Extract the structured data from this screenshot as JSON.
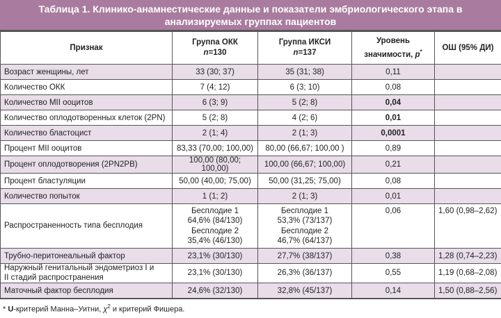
{
  "title": {
    "line1": "Таблица 1. Клинико-анамнестические данные и показатели эмбриологического этапа в",
    "line2": "анализируемых группах пациентов"
  },
  "columns": {
    "feature": "Признак",
    "okk": "Группа ОКК",
    "okk_n_label": "n",
    "okk_n": "=130",
    "icsi": "Группа ИКСИ",
    "icsi_n_label": "n",
    "icsi_n": "=137",
    "p_line1": "Уровень",
    "p_line2": "значимости, ",
    "p_sym": "p",
    "p_star": "*",
    "or": "ОШ (95% ДИ)"
  },
  "rows": [
    {
      "feature": "Возраст женщины, лет",
      "okk": "33 (30; 37)",
      "icsi": "35 (31; 38)",
      "p": "0,11",
      "or": ""
    },
    {
      "feature": "Количество ОКК",
      "okk": "7 (4; 12)",
      "icsi": "6 (3; 10)",
      "p": "0,08",
      "or": ""
    },
    {
      "feature": "Количество MII ооцитов",
      "okk": "6 (3; 9)",
      "icsi": "5 (2; 8)",
      "p": "0,04",
      "or": ""
    },
    {
      "feature": "Количество оплодотворенных клеток (2PN)",
      "okk": "5 (2; 8)",
      "icsi": "4 (2; 6)",
      "p": "0,01",
      "or": ""
    },
    {
      "feature": "Количество бластоцист",
      "okk": "2 (1; 4)",
      "icsi": "2 (1; 3)",
      "p": "0,0001",
      "or": ""
    },
    {
      "feature": "Процент MII ооцитов",
      "okk": "83,33 (70,00; 100,00)",
      "icsi": "80,00  (66,67; 100,00 )",
      "p": "0,89",
      "or": ""
    },
    {
      "feature": "Процент оплодотворения (2PN2PB)",
      "okk": "100,00 (80,00; 100,00)",
      "icsi": "100,00 (66,67; 100,00)",
      "p": "0,21",
      "or": ""
    },
    {
      "feature": "Процент бластуляции",
      "okk": "50,00 (40,00; 75,00)",
      "icsi": "50,00 (31,25; 75,00)",
      "p": "0,08",
      "or": ""
    },
    {
      "feature": "Количество попыток",
      "okk": "1 (1; 2)",
      "icsi": "2 (1; 3)",
      "p": "0,01",
      "or": ""
    }
  ],
  "distribution": {
    "feature": "Распространенность типа бесплодия",
    "okk": [
      "Бесплодие 1",
      "64,6% (84/130)",
      "Бесплодие 2",
      "35,4% (46/130)"
    ],
    "icsi": [
      "Бесплодие 1",
      "53,3% (73/137)",
      "Бесплодие 2",
      "46,7% (64/137)"
    ],
    "p": "0,06",
    "or": "1,60 (0,98–2,62)"
  },
  "rows2": [
    {
      "feature": "Трубно-перитонеальный фактор",
      "okk": "23,1% (30/130)",
      "icsi": "27,7% (38/137)",
      "p": "0,38",
      "or": "1,28 (0,74–2,23)"
    },
    {
      "feature_line1": "Наружный генитальный эндометриоз I и",
      "feature_line2": "II стадий распространения",
      "okk": "23,1% (30/130)",
      "icsi": "26,3% (36/137)",
      "p": "0,55",
      "or": "1,19 (0,68–2,08)"
    },
    {
      "feature": "Маточный фактор бесплодия",
      "okk": "24,6% (32/130)",
      "icsi": "32,8% (45/137)",
      "p": "0,14",
      "or": "1,50 (0,88–2,56)"
    }
  ],
  "footnote": {
    "star": "* ",
    "u": "U",
    "text1": "-критерий Манна–Уитни, ",
    "chi": "χ",
    "sq": "2",
    "text2": " и критерий Фишера."
  },
  "colors": {
    "header": "#a97c9f",
    "stripe": "#e8dde9"
  }
}
